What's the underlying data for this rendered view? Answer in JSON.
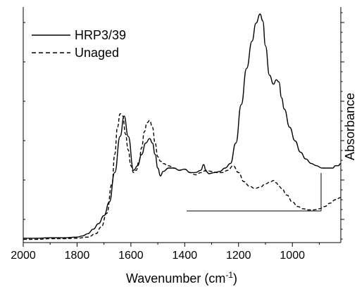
{
  "chart_data": {
    "type": "line",
    "title": "",
    "xlabel": "Wavenumber (cm",
    "xlabel_sup": "-1",
    "xlabel_close": ")",
    "ylabel": "Absorbance",
    "xlim": [
      2000,
      820
    ],
    "x_reversed": true,
    "ylim": [
      0,
      1
    ],
    "x_ticks": [
      2000,
      1800,
      1600,
      1400,
      1200,
      1000
    ],
    "x_tick_labels": [
      "2000",
      "1800",
      "1600",
      "1400",
      "1200",
      "1000"
    ],
    "y_tick_labels_shown": false,
    "grid": false,
    "legend_position": "top-left",
    "series": [
      {
        "name": "HRP3/39",
        "style": "solid",
        "color": "#000000",
        "x": [
          2000,
          1950,
          1900,
          1850,
          1800,
          1780,
          1760,
          1740,
          1720,
          1700,
          1680,
          1660,
          1640,
          1625,
          1610,
          1590,
          1575,
          1560,
          1545,
          1530,
          1520,
          1510,
          1500,
          1490,
          1480,
          1460,
          1440,
          1420,
          1400,
          1380,
          1360,
          1340,
          1330,
          1320,
          1310,
          1290,
          1270,
          1250,
          1230,
          1210,
          1190,
          1170,
          1150,
          1135,
          1120,
          1110,
          1100,
          1085,
          1070,
          1060,
          1050,
          1040,
          1030,
          1010,
          990,
          970,
          950,
          930,
          910,
          890,
          870,
          850,
          840,
          830,
          820
        ],
        "y": [
          0.01,
          0.01,
          0.012,
          0.012,
          0.015,
          0.02,
          0.03,
          0.05,
          0.075,
          0.11,
          0.17,
          0.3,
          0.46,
          0.55,
          0.46,
          0.31,
          0.33,
          0.38,
          0.43,
          0.45,
          0.43,
          0.38,
          0.32,
          0.285,
          0.305,
          0.32,
          0.32,
          0.31,
          0.315,
          0.3,
          0.3,
          0.31,
          0.335,
          0.305,
          0.295,
          0.3,
          0.305,
          0.32,
          0.34,
          0.43,
          0.6,
          0.76,
          0.88,
          0.96,
          1.0,
          0.97,
          0.86,
          0.73,
          0.69,
          0.71,
          0.7,
          0.63,
          0.58,
          0.5,
          0.44,
          0.39,
          0.36,
          0.34,
          0.33,
          0.32,
          0.32,
          0.32,
          0.33,
          0.33,
          0.34
        ]
      },
      {
        "name": "Unaged",
        "style": "dashed",
        "color": "#000000",
        "x": [
          2000,
          1950,
          1900,
          1850,
          1800,
          1760,
          1730,
          1710,
          1690,
          1670,
          1660,
          1650,
          1640,
          1630,
          1620,
          1610,
          1600,
          1590,
          1580,
          1570,
          1560,
          1550,
          1540,
          1530,
          1520,
          1510,
          1500,
          1490,
          1480,
          1460,
          1440,
          1420,
          1400,
          1380,
          1360,
          1340,
          1320,
          1300,
          1280,
          1260,
          1240,
          1220,
          1200,
          1180,
          1160,
          1140,
          1120,
          1100,
          1080,
          1070,
          1060,
          1050,
          1040,
          1020,
          1000,
          980,
          960,
          940,
          920,
          900,
          880,
          860,
          840,
          820
        ],
        "y": [
          0.005,
          0.005,
          0.008,
          0.008,
          0.01,
          0.015,
          0.03,
          0.06,
          0.12,
          0.25,
          0.38,
          0.5,
          0.56,
          0.55,
          0.47,
          0.4,
          0.33,
          0.3,
          0.31,
          0.35,
          0.41,
          0.48,
          0.52,
          0.53,
          0.5,
          0.43,
          0.37,
          0.35,
          0.34,
          0.33,
          0.32,
          0.31,
          0.315,
          0.3,
          0.29,
          0.3,
          0.31,
          0.305,
          0.3,
          0.3,
          0.31,
          0.33,
          0.3,
          0.26,
          0.24,
          0.23,
          0.235,
          0.25,
          0.26,
          0.265,
          0.255,
          0.24,
          0.23,
          0.2,
          0.17,
          0.15,
          0.14,
          0.135,
          0.135,
          0.14,
          0.15,
          0.165,
          0.18,
          0.19
        ]
      }
    ]
  }
}
